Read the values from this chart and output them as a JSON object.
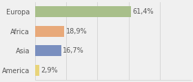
{
  "categories": [
    "Europa",
    "Africa",
    "Asia",
    "America"
  ],
  "values": [
    61.4,
    18.9,
    16.7,
    2.9
  ],
  "labels": [
    "61,4%",
    "18,9%",
    "16,7%",
    "2,9%"
  ],
  "bar_colors": [
    "#a8bf8a",
    "#e8a97a",
    "#7a8fbf",
    "#e8d47a"
  ],
  "background_color": "#f0f0f0",
  "xlim": [
    0,
    100
  ],
  "label_fontsize": 7,
  "category_fontsize": 7,
  "bar_height": 0.55
}
